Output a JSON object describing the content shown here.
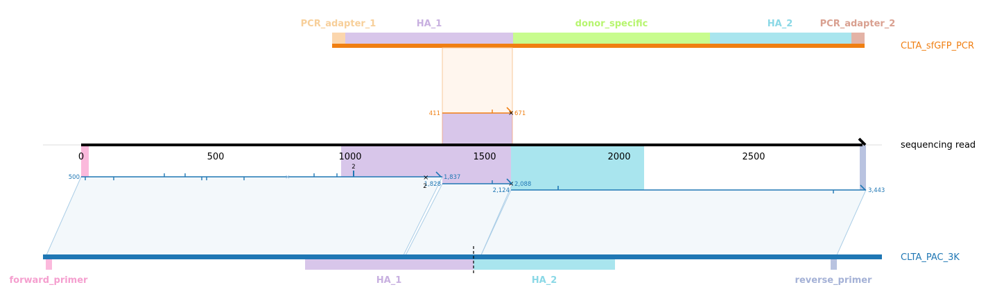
{
  "top_sequence": {
    "name": "CLTA_sfGFP_PCR",
    "color": "#f07f12",
    "features": [
      {
        "label": "PCR_adapter_1",
        "color": "#fbd6ad",
        "label_color": "#f7cf9a"
      },
      {
        "label": "HA_1",
        "color": "#d8c6ea",
        "label_color": "#c8b0e0"
      },
      {
        "label": "donor_specific",
        "color": "#c8fc8e",
        "label_color": "#b7f56f"
      },
      {
        "label": "HA_2",
        "color": "#a9e5ee",
        "label_color": "#8ad8e6"
      },
      {
        "label": "PCR_adapter_2",
        "color": "#e3b3a6",
        "label_color": "#d9a090"
      }
    ],
    "alignment_start": "411",
    "alignment_end": "671"
  },
  "read": {
    "name": "sequencing read",
    "ticks": [
      "0",
      "500",
      "1000",
      "1500",
      "2000",
      "2500"
    ],
    "segment_labels": {
      "s1_start": "500",
      "s1_end": "1,837",
      "s2_start": "1,828",
      "s2_end": "2,088",
      "s3_start": "2,124",
      "s3_end": "3,443",
      "mark_a": "2",
      "mark_b": "2"
    }
  },
  "bottom_sequence": {
    "name": "CLTA_PAC_3K",
    "color": "#1f77b4",
    "features": [
      {
        "label": "forward_primer",
        "color": "#fbb9dc",
        "label_color": "#f59fcf"
      },
      {
        "label": "HA_1",
        "color": "#d8c6ea",
        "label_color": "#c8b0e0"
      },
      {
        "label": "HA_2",
        "color": "#a9e5ee",
        "label_color": "#8ad8e6"
      },
      {
        "label": "reverse_primer",
        "color": "#b9c3e0",
        "label_color": "#a4b1d6"
      }
    ]
  }
}
